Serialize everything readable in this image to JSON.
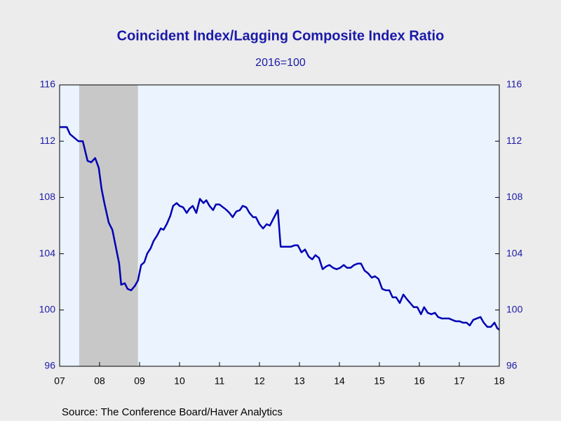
{
  "chart_data": {
    "type": "line",
    "title": "Coincident Index/Lagging Composite Index Ratio",
    "subtitle": "2016=100",
    "source": "Source:  The Conference Board/Haver Analytics",
    "xlim": [
      2007.5,
      2018.5
    ],
    "xticks": [
      {
        "value": 2007.5,
        "label": "07"
      },
      {
        "value": 2008.5,
        "label": "08"
      },
      {
        "value": 2009.5,
        "label": "09"
      },
      {
        "value": 2010.5,
        "label": "10"
      },
      {
        "value": 2011.5,
        "label": "11"
      },
      {
        "value": 2012.5,
        "label": "12"
      },
      {
        "value": 2013.5,
        "label": "13"
      },
      {
        "value": 2014.5,
        "label": "14"
      },
      {
        "value": 2015.5,
        "label": "15"
      },
      {
        "value": 2016.5,
        "label": "16"
      },
      {
        "value": 2017.5,
        "label": "17"
      },
      {
        "value": 2018.5,
        "label": "18"
      }
    ],
    "ylim": [
      96,
      116
    ],
    "yticks": [
      96,
      100,
      104,
      108,
      112,
      116
    ],
    "y2lim": [
      96,
      116
    ],
    "y2ticks": [
      96,
      100,
      104,
      108,
      112,
      116
    ],
    "shaded": [
      2007.99,
      2009.46
    ],
    "shade_color": "#c8c8c8",
    "x": [
      2007.5,
      2007.68,
      2007.76,
      2007.97,
      2008.08,
      2008.2,
      2008.29,
      2008.39,
      2008.48,
      2008.55,
      2008.62,
      2008.73,
      2008.82,
      2008.99,
      2009.04,
      2009.13,
      2009.2,
      2009.29,
      2009.38,
      2009.46,
      2009.54,
      2009.62,
      2009.69,
      2009.78,
      2009.85,
      2009.94,
      2010.03,
      2010.1,
      2010.18,
      2010.27,
      2010.34,
      2010.43,
      2010.5,
      2010.59,
      2010.68,
      2010.75,
      2010.83,
      2010.92,
      2011.01,
      2011.1,
      2011.17,
      2011.25,
      2011.34,
      2011.41,
      2011.5,
      2011.59,
      2011.68,
      2011.75,
      2011.83,
      2011.92,
      2012.01,
      2012.08,
      2012.17,
      2012.25,
      2012.34,
      2012.41,
      2012.5,
      2012.59,
      2012.68,
      2012.76,
      2012.85,
      2012.96,
      2013.03,
      2013.11,
      2013.2,
      2013.29,
      2013.38,
      2013.46,
      2013.55,
      2013.64,
      2013.73,
      2013.82,
      2013.9,
      2013.99,
      2014.08,
      2014.17,
      2014.25,
      2014.34,
      2014.43,
      2014.52,
      2014.61,
      2014.69,
      2014.78,
      2014.87,
      2014.96,
      2015.04,
      2015.13,
      2015.22,
      2015.31,
      2015.39,
      2015.48,
      2015.57,
      2015.66,
      2015.75,
      2015.83,
      2015.92,
      2016.01,
      2016.1,
      2016.18,
      2016.27,
      2016.36,
      2016.45,
      2016.54,
      2016.62,
      2016.71,
      2016.8,
      2016.89,
      2016.97,
      2017.06,
      2017.15,
      2017.24,
      2017.32,
      2017.41,
      2017.5,
      2017.59,
      2017.68,
      2017.76,
      2017.85,
      2017.94,
      2018.03,
      2018.11,
      2018.2,
      2018.29,
      2018.38,
      2018.45,
      2018.5
    ],
    "series": [
      {
        "color": "#0000b4",
        "values": [
          113.0,
          113.0,
          112.5,
          112.0,
          112.0,
          110.6,
          110.5,
          110.8,
          110.1,
          108.6,
          107.6,
          106.2,
          105.7,
          103.3,
          101.8,
          101.9,
          101.5,
          101.4,
          101.7,
          102.1,
          103.2,
          103.4,
          104.0,
          104.4,
          104.9,
          105.3,
          105.8,
          105.7,
          106.1,
          106.7,
          107.4,
          107.6,
          107.4,
          107.3,
          106.9,
          107.2,
          107.4,
          106.9,
          107.9,
          107.6,
          107.8,
          107.4,
          107.1,
          107.5,
          107.5,
          107.3,
          107.1,
          106.9,
          106.6,
          107.0,
          107.1,
          107.4,
          107.3,
          106.9,
          106.6,
          106.6,
          106.1,
          105.8,
          106.1,
          106.0,
          106.5,
          107.1,
          104.5,
          104.5,
          104.5,
          104.5,
          104.6,
          104.6,
          104.1,
          104.3,
          103.8,
          103.6,
          103.9,
          103.7,
          102.9,
          103.1,
          103.2,
          103.0,
          102.9,
          103.0,
          103.2,
          103.0,
          103.0,
          103.2,
          103.3,
          103.3,
          102.8,
          102.6,
          102.3,
          102.4,
          102.2,
          101.5,
          101.4,
          101.4,
          100.9,
          100.9,
          100.5,
          101.1,
          100.8,
          100.5,
          100.2,
          100.2,
          99.7,
          100.2,
          99.8,
          99.7,
          99.8,
          99.5,
          99.4,
          99.4,
          99.4,
          99.3,
          99.2,
          99.2,
          99.1,
          99.1,
          98.9,
          99.3,
          99.4,
          99.5,
          99.1,
          98.8,
          98.8,
          99.1,
          98.7,
          98.6
        ]
      }
    ]
  }
}
